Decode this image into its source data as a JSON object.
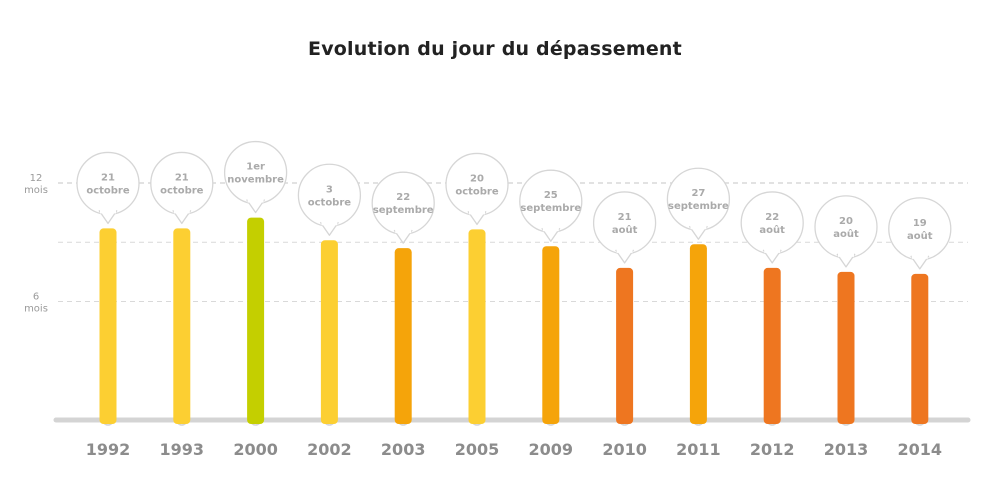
{
  "chart_data": {
    "type": "bar",
    "title": "Evolution du jour du dépassement",
    "y_ticks": [
      {
        "value": 12,
        "lines": [
          "12",
          "mois"
        ]
      },
      {
        "value": 6,
        "lines": [
          "6",
          "mois"
        ]
      }
    ],
    "ylim": [
      0,
      12
    ],
    "grid": true,
    "categories": [
      "1992",
      "1993",
      "2000",
      "2002",
      "2003",
      "2005",
      "2009",
      "2010",
      "2011",
      "2012",
      "2013",
      "2014"
    ],
    "values": [
      9.7,
      9.7,
      10.25,
      9.1,
      8.7,
      9.65,
      8.8,
      7.7,
      8.9,
      7.7,
      7.5,
      7.4
    ],
    "labels": [
      [
        "21",
        "octobre"
      ],
      [
        "21",
        "octobre"
      ],
      [
        "1er",
        "novembre"
      ],
      [
        "3",
        "octobre"
      ],
      [
        "22",
        "septembre"
      ],
      [
        "20",
        "octobre"
      ],
      [
        "25",
        "septembre"
      ],
      [
        "21",
        "août"
      ],
      [
        "27",
        "septembre"
      ],
      [
        "22",
        "août"
      ],
      [
        "20",
        "août"
      ],
      [
        "19",
        "août"
      ]
    ],
    "bar_colors": [
      "#fccf32",
      "#fccf32",
      "#c4cf00",
      "#fccf32",
      "#f5a40a",
      "#fccf32",
      "#f5a40a",
      "#ee7620",
      "#f5a40a",
      "#ee7620",
      "#ee7620",
      "#ee7620"
    ]
  }
}
